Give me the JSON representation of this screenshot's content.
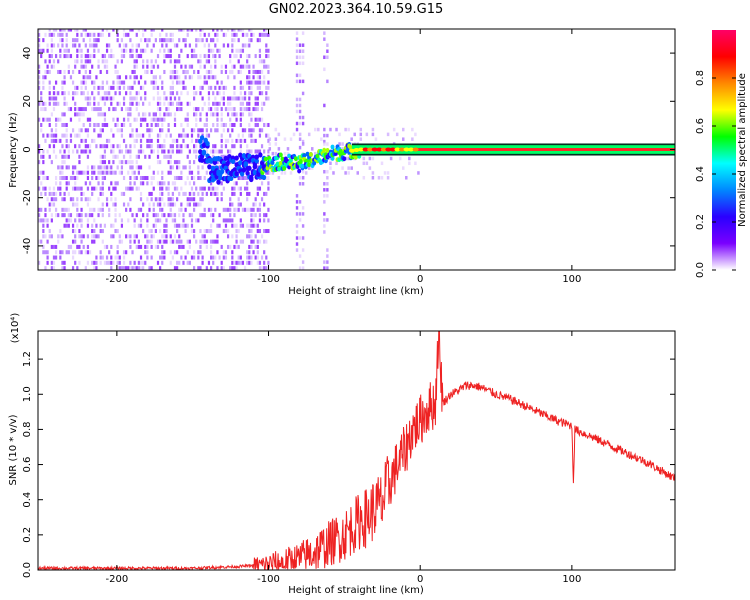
{
  "title": "GN02.2023.364.10.59.G15",
  "chart_data": [
    {
      "type": "heatmap",
      "xlabel": "Height of straight line (km)",
      "ylabel": "Frequency (Hz)",
      "xlim": [
        -252,
        168
      ],
      "ylim": [
        -50,
        50
      ],
      "x_ticks": [
        -200,
        -100,
        0,
        100
      ],
      "x_tick_labels": [
        "-200",
        "-100",
        "0",
        "100"
      ],
      "y_ticks": [
        -40,
        -20,
        0,
        20,
        40
      ],
      "y_tick_labels": [
        "-40",
        "-20",
        "0",
        "20",
        "40"
      ],
      "colorbar": {
        "label": "Normalized spectral amplitude",
        "range": [
          0,
          1
        ],
        "ticks": [
          0.0,
          0.2,
          0.4,
          0.6,
          0.8
        ],
        "tick_labels": [
          "0.0",
          "0.2",
          "0.4",
          "0.6",
          "0.8"
        ],
        "colormap": [
          "#ffffff",
          "#7a00ff",
          "#2a00ff",
          "#0088ff",
          "#00ffff",
          "#00ff00",
          "#ffff00",
          "#ff8800",
          "#ff0000",
          "#ff0066"
        ]
      },
      "signal_track": {
        "x": [
          -140,
          -130,
          -120,
          -110,
          -100,
          -90,
          -80,
          -70,
          -60,
          -50,
          -40,
          -30,
          -20,
          -10,
          0,
          50,
          100,
          168
        ],
        "frequency": [
          -8,
          -9,
          -6,
          -8,
          -6,
          -5,
          -6,
          -4,
          -2,
          -1,
          0,
          0,
          0,
          0,
          0,
          0,
          0,
          0
        ]
      }
    },
    {
      "type": "line",
      "xlabel": "Height of straight line (km)",
      "ylabel": "SNR (10 * v/v)",
      "y_scale_label": "(x10⁴)",
      "xlim": [
        -252,
        168
      ],
      "ylim": [
        0,
        1.36
      ],
      "x_ticks": [
        -200,
        -100,
        0,
        100
      ],
      "x_tick_labels": [
        "-200",
        "-100",
        "0",
        "100"
      ],
      "y_ticks": [
        0.0,
        0.2,
        0.4,
        0.6,
        0.8,
        1.0,
        1.2
      ],
      "y_tick_labels": [
        "0.0",
        "0.2",
        "0.4",
        "0.6",
        "0.8",
        "1.0",
        "1.2"
      ],
      "grid": false,
      "series": [
        {
          "color": "#ee2222",
          "x": [
            -252,
            -200,
            -150,
            -120,
            -100,
            -90,
            -80,
            -70,
            -60,
            -50,
            -45,
            -40,
            -35,
            -30,
            -25,
            -20,
            -15,
            -10,
            -5,
            0,
            5,
            10,
            12,
            15,
            20,
            25,
            30,
            35,
            40,
            45,
            50,
            60,
            70,
            80,
            90,
            100,
            101,
            102,
            110,
            120,
            130,
            140,
            150,
            160,
            168
          ],
          "y": [
            0.01,
            0.01,
            0.01,
            0.02,
            0.03,
            0.04,
            0.06,
            0.1,
            0.15,
            0.2,
            0.24,
            0.28,
            0.3,
            0.35,
            0.38,
            0.5,
            0.6,
            0.68,
            0.8,
            0.85,
            0.92,
            0.95,
            1.35,
            0.95,
            1.0,
            1.02,
            1.05,
            1.05,
            1.04,
            1.02,
            1.0,
            0.97,
            0.93,
            0.89,
            0.85,
            0.82,
            0.5,
            0.8,
            0.77,
            0.73,
            0.69,
            0.65,
            0.61,
            0.56,
            0.52
          ]
        }
      ]
    }
  ]
}
